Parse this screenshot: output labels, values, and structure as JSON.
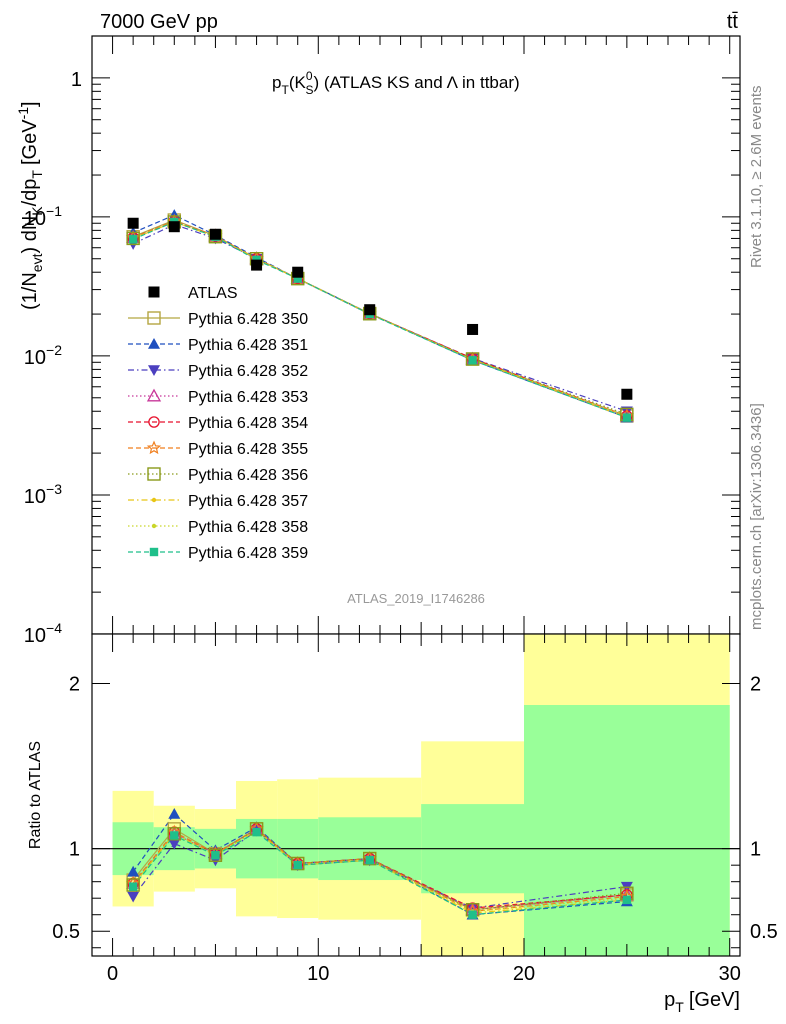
{
  "header": {
    "left": "7000 GeV pp",
    "right": "tt̄"
  },
  "side_labels": {
    "rivet": "Rivet 3.1.10, ≥ 2.6M events",
    "mcplots": "mcplots.cern.ch [arXiv:1306.3436]"
  },
  "analysis_id": "ATLAS_2019_I1746286",
  "chart_data": [
    {
      "type": "line",
      "title": "p_T(K^0_S) (ATLAS KS and Λ in ttbar)",
      "title_parts": {
        "main": "p",
        "sub1": "T",
        "open": "(K",
        "sup": "0",
        "sub2": "S",
        "close": ") (ATLAS KS and",
        "lambda": "Λ",
        "rest": "in ttbar)"
      },
      "ylabel": "(1/N_evt) dN_K/dp_T [GeV^-1]",
      "ylabel_parts": {
        "a": "(1/N",
        "b": "evt",
        "c": ") dN",
        "d": "K",
        "e": "/dp",
        "f": "T",
        "g": "[GeV",
        "h": "-1",
        "i": "]"
      },
      "yscale": "log",
      "ylim": [
        0.0001,
        2
      ],
      "xlim": [
        -1,
        30.5
      ],
      "yticks": [
        {
          "v": 0.0001,
          "b": "10",
          "e": "−4"
        },
        {
          "v": 0.001,
          "b": "10",
          "e": "−3"
        },
        {
          "v": 0.01,
          "b": "10",
          "e": "−2"
        },
        {
          "v": 0.1,
          "b": "10",
          "e": "−1"
        },
        {
          "v": 1,
          "b": "1",
          "e": ""
        }
      ],
      "legend_position": "middle-left",
      "x": [
        1,
        3,
        5,
        7,
        9,
        12.5,
        17.5,
        25
      ],
      "data": {
        "name": "ATLAS",
        "values": [
          0.09,
          0.085,
          0.075,
          0.045,
          0.04,
          0.0215,
          0.0155,
          0.0053
        ]
      },
      "series": [
        {
          "name": "Pythia 6.428 350",
          "color": "#b5a642",
          "marker": "open-square",
          "dash": "solid",
          "values": [
            0.072,
            0.095,
            0.073,
            0.05,
            0.036,
            0.0202,
            0.0095,
            0.0037
          ]
        },
        {
          "name": "Pythia 6.428 351",
          "color": "#1f4fbf",
          "marker": "triangle-up",
          "dash": "dashed",
          "values": [
            0.077,
            0.103,
            0.074,
            0.051,
            0.036,
            0.0202,
            0.0093,
            0.0036
          ]
        },
        {
          "name": "Pythia 6.428 352",
          "color": "#4b3fbf",
          "marker": "triangle-down",
          "dash": "dashdot",
          "values": [
            0.064,
            0.088,
            0.07,
            0.05,
            0.036,
            0.02,
            0.0096,
            0.004
          ]
        },
        {
          "name": "Pythia 6.428 353",
          "color": "#c8389a",
          "marker": "open-triangle",
          "dash": "dotted",
          "values": [
            0.071,
            0.093,
            0.073,
            0.05,
            0.036,
            0.0201,
            0.0095,
            0.0037
          ]
        },
        {
          "name": "Pythia 6.428 354",
          "color": "#e8112d",
          "marker": "open-circle",
          "dash": "dashed",
          "values": [
            0.071,
            0.093,
            0.073,
            0.05,
            0.036,
            0.0201,
            0.0096,
            0.0037
          ]
        },
        {
          "name": "Pythia 6.428 355",
          "color": "#f07f1e",
          "marker": "open-star",
          "dash": "dashed",
          "values": [
            0.071,
            0.093,
            0.073,
            0.05,
            0.036,
            0.0201,
            0.0094,
            0.0037
          ]
        },
        {
          "name": "Pythia 6.428 356",
          "color": "#8a9a1b",
          "marker": "open-square",
          "dash": "dotted",
          "values": [
            0.07,
            0.092,
            0.072,
            0.05,
            0.036,
            0.0201,
            0.0095,
            0.0038
          ]
        },
        {
          "name": "Pythia 6.428 357",
          "color": "#e8c516",
          "marker": "small-dot",
          "dash": "dashdot",
          "values": [
            0.07,
            0.092,
            0.072,
            0.05,
            0.036,
            0.0201,
            0.0094,
            0.0036
          ]
        },
        {
          "name": "Pythia 6.428 358",
          "color": "#c9d62a",
          "marker": "small-dot",
          "dash": "dotted",
          "values": [
            0.07,
            0.092,
            0.072,
            0.05,
            0.036,
            0.0201,
            0.0094,
            0.0037
          ]
        },
        {
          "name": "Pythia 6.428 359",
          "color": "#1fbf8a",
          "marker": "square",
          "dash": "dashed",
          "values": [
            0.069,
            0.092,
            0.072,
            0.049,
            0.036,
            0.02,
            0.0093,
            0.0036
          ]
        }
      ]
    },
    {
      "type": "line",
      "ylabel": "Ratio to ATLAS",
      "xlabel": "p_T [GeV]",
      "xlabel_parts": {
        "a": "p",
        "b": "T",
        "c": "[GeV]"
      },
      "ylim": [
        0.35,
        2.3
      ],
      "xlim": [
        -1,
        30.5
      ],
      "xticks": [
        0,
        10,
        20,
        30
      ],
      "yticks": [
        0.5,
        1,
        2
      ],
      "reference_line": 1,
      "bands": [
        {
          "x0": 0,
          "x1": 2,
          "inner": [
            0.84,
            1.16
          ],
          "outer": [
            0.65,
            1.35
          ]
        },
        {
          "x0": 2,
          "x1": 4,
          "inner": [
            0.87,
            1.13
          ],
          "outer": [
            0.74,
            1.26
          ]
        },
        {
          "x0": 4,
          "x1": 6,
          "inner": [
            0.88,
            1.12
          ],
          "outer": [
            0.76,
            1.24
          ]
        },
        {
          "x0": 6,
          "x1": 8,
          "inner": [
            0.82,
            1.18
          ],
          "outer": [
            0.59,
            1.41
          ]
        },
        {
          "x0": 8,
          "x1": 10,
          "inner": [
            0.82,
            1.18
          ],
          "outer": [
            0.58,
            1.42
          ]
        },
        {
          "x0": 10,
          "x1": 15,
          "inner": [
            0.81,
            1.19
          ],
          "outer": [
            0.57,
            1.43
          ]
        },
        {
          "x0": 15,
          "x1": 20,
          "inner": [
            0.73,
            1.27
          ],
          "outer": [
            0.35,
            1.65
          ]
        },
        {
          "x0": 20,
          "x1": 30,
          "inner": [
            0.35,
            1.87
          ],
          "outer": [
            0.35,
            2.3
          ]
        }
      ],
      "x": [
        1,
        3,
        5,
        7,
        9,
        12.5,
        17.5,
        25
      ],
      "series": [
        {
          "name": "Pythia 6.428 350",
          "values": [
            0.81,
            1.12,
            0.97,
            1.12,
            0.91,
            0.94,
            0.63,
            0.72
          ]
        },
        {
          "name": "Pythia 6.428 351",
          "values": [
            0.86,
            1.21,
            0.99,
            1.13,
            0.91,
            0.94,
            0.6,
            0.68
          ]
        },
        {
          "name": "Pythia 6.428 352",
          "values": [
            0.71,
            1.03,
            0.93,
            1.11,
            0.9,
            0.93,
            0.64,
            0.77
          ]
        },
        {
          "name": "Pythia 6.428 353",
          "values": [
            0.79,
            1.09,
            0.97,
            1.12,
            0.91,
            0.94,
            0.63,
            0.72
          ]
        },
        {
          "name": "Pythia 6.428 354",
          "values": [
            0.79,
            1.1,
            0.97,
            1.12,
            0.91,
            0.94,
            0.64,
            0.72
          ]
        },
        {
          "name": "Pythia 6.428 355",
          "values": [
            0.79,
            1.1,
            0.97,
            1.12,
            0.91,
            0.94,
            0.62,
            0.71
          ]
        },
        {
          "name": "Pythia 6.428 356",
          "values": [
            0.78,
            1.09,
            0.96,
            1.12,
            0.91,
            0.94,
            0.63,
            0.73
          ]
        },
        {
          "name": "Pythia 6.428 357",
          "values": [
            0.78,
            1.09,
            0.96,
            1.11,
            0.9,
            0.93,
            0.61,
            0.69
          ]
        },
        {
          "name": "Pythia 6.428 358",
          "values": [
            0.78,
            1.09,
            0.96,
            1.11,
            0.9,
            0.93,
            0.62,
            0.7
          ]
        },
        {
          "name": "Pythia 6.428 359",
          "values": [
            0.77,
            1.08,
            0.96,
            1.1,
            0.9,
            0.93,
            0.6,
            0.69
          ]
        }
      ]
    }
  ]
}
